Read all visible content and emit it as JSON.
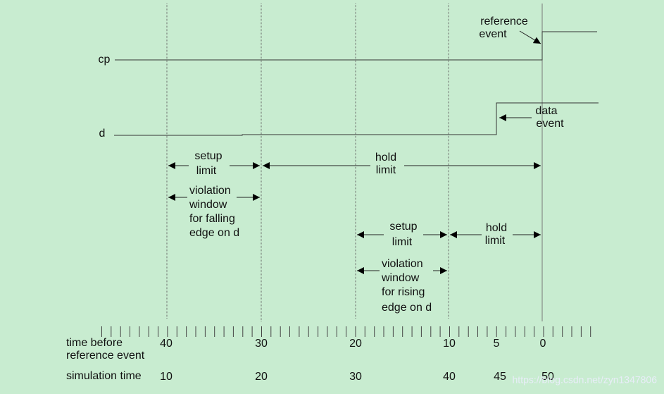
{
  "signals": [
    "cp",
    "d"
  ],
  "reference_event": [
    "reference",
    "event"
  ],
  "data_event": [
    "data",
    "event"
  ],
  "windows": [
    {
      "setup": [
        "setup",
        "limit"
      ],
      "hold": [
        "hold",
        "limit"
      ],
      "violation": [
        "violation",
        "window",
        "for falling",
        "edge on d"
      ]
    },
    {
      "setup": [
        "setup",
        "limit"
      ],
      "hold": [
        "hold",
        "limit"
      ],
      "violation": [
        "violation",
        "window",
        "for rising",
        "edge on d"
      ]
    }
  ],
  "axis": {
    "time_before_label": [
      "time before",
      "reference event"
    ],
    "time_before_ticks": [
      "40",
      "30",
      "20",
      "10",
      "5",
      "0"
    ],
    "simulation_label": "simulation time",
    "simulation_ticks": [
      "10",
      "20",
      "30",
      "40",
      "45",
      "50"
    ]
  },
  "watermark": "https://blog.csdn.net/zyn1347806"
}
